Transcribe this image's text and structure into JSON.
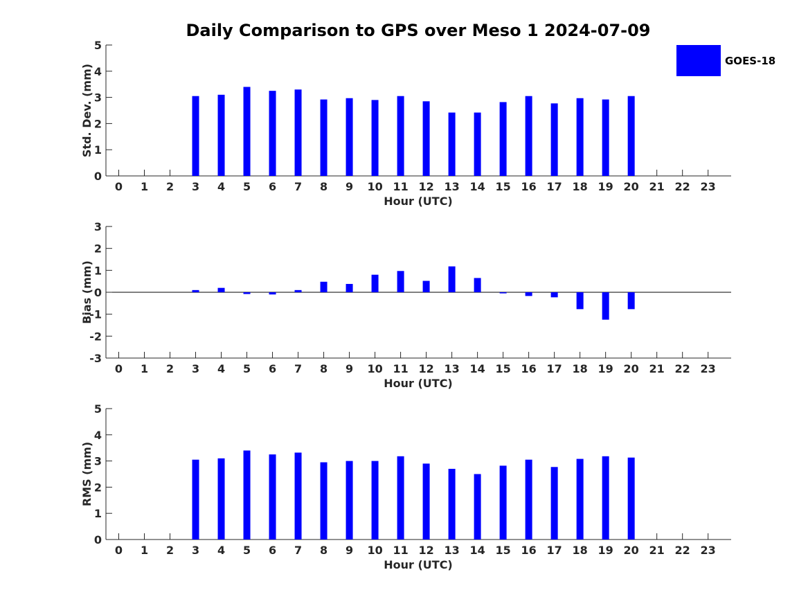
{
  "title": "Daily Comparison to GPS over Meso 1 2024-07-09",
  "legend": {
    "label": "GOES-18",
    "color": "#0000ff",
    "placement": "top-right"
  },
  "chart_data": [
    {
      "type": "bar",
      "title": "",
      "xlabel": "Hour (UTC)",
      "ylabel": "Std. Dev. (mm)",
      "categories": [
        "0",
        "1",
        "2",
        "3",
        "4",
        "5",
        "6",
        "7",
        "8",
        "9",
        "10",
        "11",
        "12",
        "13",
        "14",
        "15",
        "16",
        "17",
        "18",
        "19",
        "20",
        "21",
        "22",
        "23"
      ],
      "yticks": [
        "0",
        "1",
        "2",
        "3",
        "4",
        "5"
      ],
      "ylim": [
        0,
        5
      ],
      "series": [
        {
          "name": "GOES-18",
          "color": "#0000ff",
          "values": [
            null,
            null,
            null,
            3.05,
            3.1,
            3.4,
            3.25,
            3.3,
            2.92,
            2.97,
            2.9,
            3.05,
            2.85,
            2.42,
            2.42,
            2.82,
            3.05,
            2.77,
            2.97,
            2.92,
            3.05,
            null,
            null,
            null
          ]
        }
      ]
    },
    {
      "type": "bar",
      "title": "",
      "xlabel": "Hour (UTC)",
      "ylabel": "Bias (mm)",
      "categories": [
        "0",
        "1",
        "2",
        "3",
        "4",
        "5",
        "6",
        "7",
        "8",
        "9",
        "10",
        "11",
        "12",
        "13",
        "14",
        "15",
        "16",
        "17",
        "18",
        "19",
        "20",
        "21",
        "22",
        "23"
      ],
      "yticks": [
        "-3",
        "-2",
        "-1",
        "0",
        "1",
        "2",
        "3"
      ],
      "ylim": [
        -3,
        3
      ],
      "series": [
        {
          "name": "GOES-18",
          "color": "#0000ff",
          "values": [
            null,
            null,
            null,
            0.1,
            0.2,
            -0.08,
            -0.1,
            0.1,
            0.48,
            0.38,
            0.8,
            0.97,
            0.52,
            1.18,
            0.65,
            -0.05,
            -0.17,
            -0.23,
            -0.77,
            -1.25,
            -0.77,
            null,
            null,
            null
          ]
        }
      ]
    },
    {
      "type": "bar",
      "title": "",
      "xlabel": "Hour (UTC)",
      "ylabel": "RMS (mm)",
      "categories": [
        "0",
        "1",
        "2",
        "3",
        "4",
        "5",
        "6",
        "7",
        "8",
        "9",
        "10",
        "11",
        "12",
        "13",
        "14",
        "15",
        "16",
        "17",
        "18",
        "19",
        "20",
        "21",
        "22",
        "23"
      ],
      "yticks": [
        "0",
        "1",
        "2",
        "3",
        "4",
        "5"
      ],
      "ylim": [
        0,
        5
      ],
      "series": [
        {
          "name": "GOES-18",
          "color": "#0000ff",
          "values": [
            null,
            null,
            null,
            3.05,
            3.1,
            3.4,
            3.25,
            3.32,
            2.95,
            3.0,
            3.0,
            3.18,
            2.9,
            2.7,
            2.5,
            2.82,
            3.05,
            2.77,
            3.08,
            3.18,
            3.13,
            null,
            null,
            null
          ]
        }
      ]
    }
  ]
}
